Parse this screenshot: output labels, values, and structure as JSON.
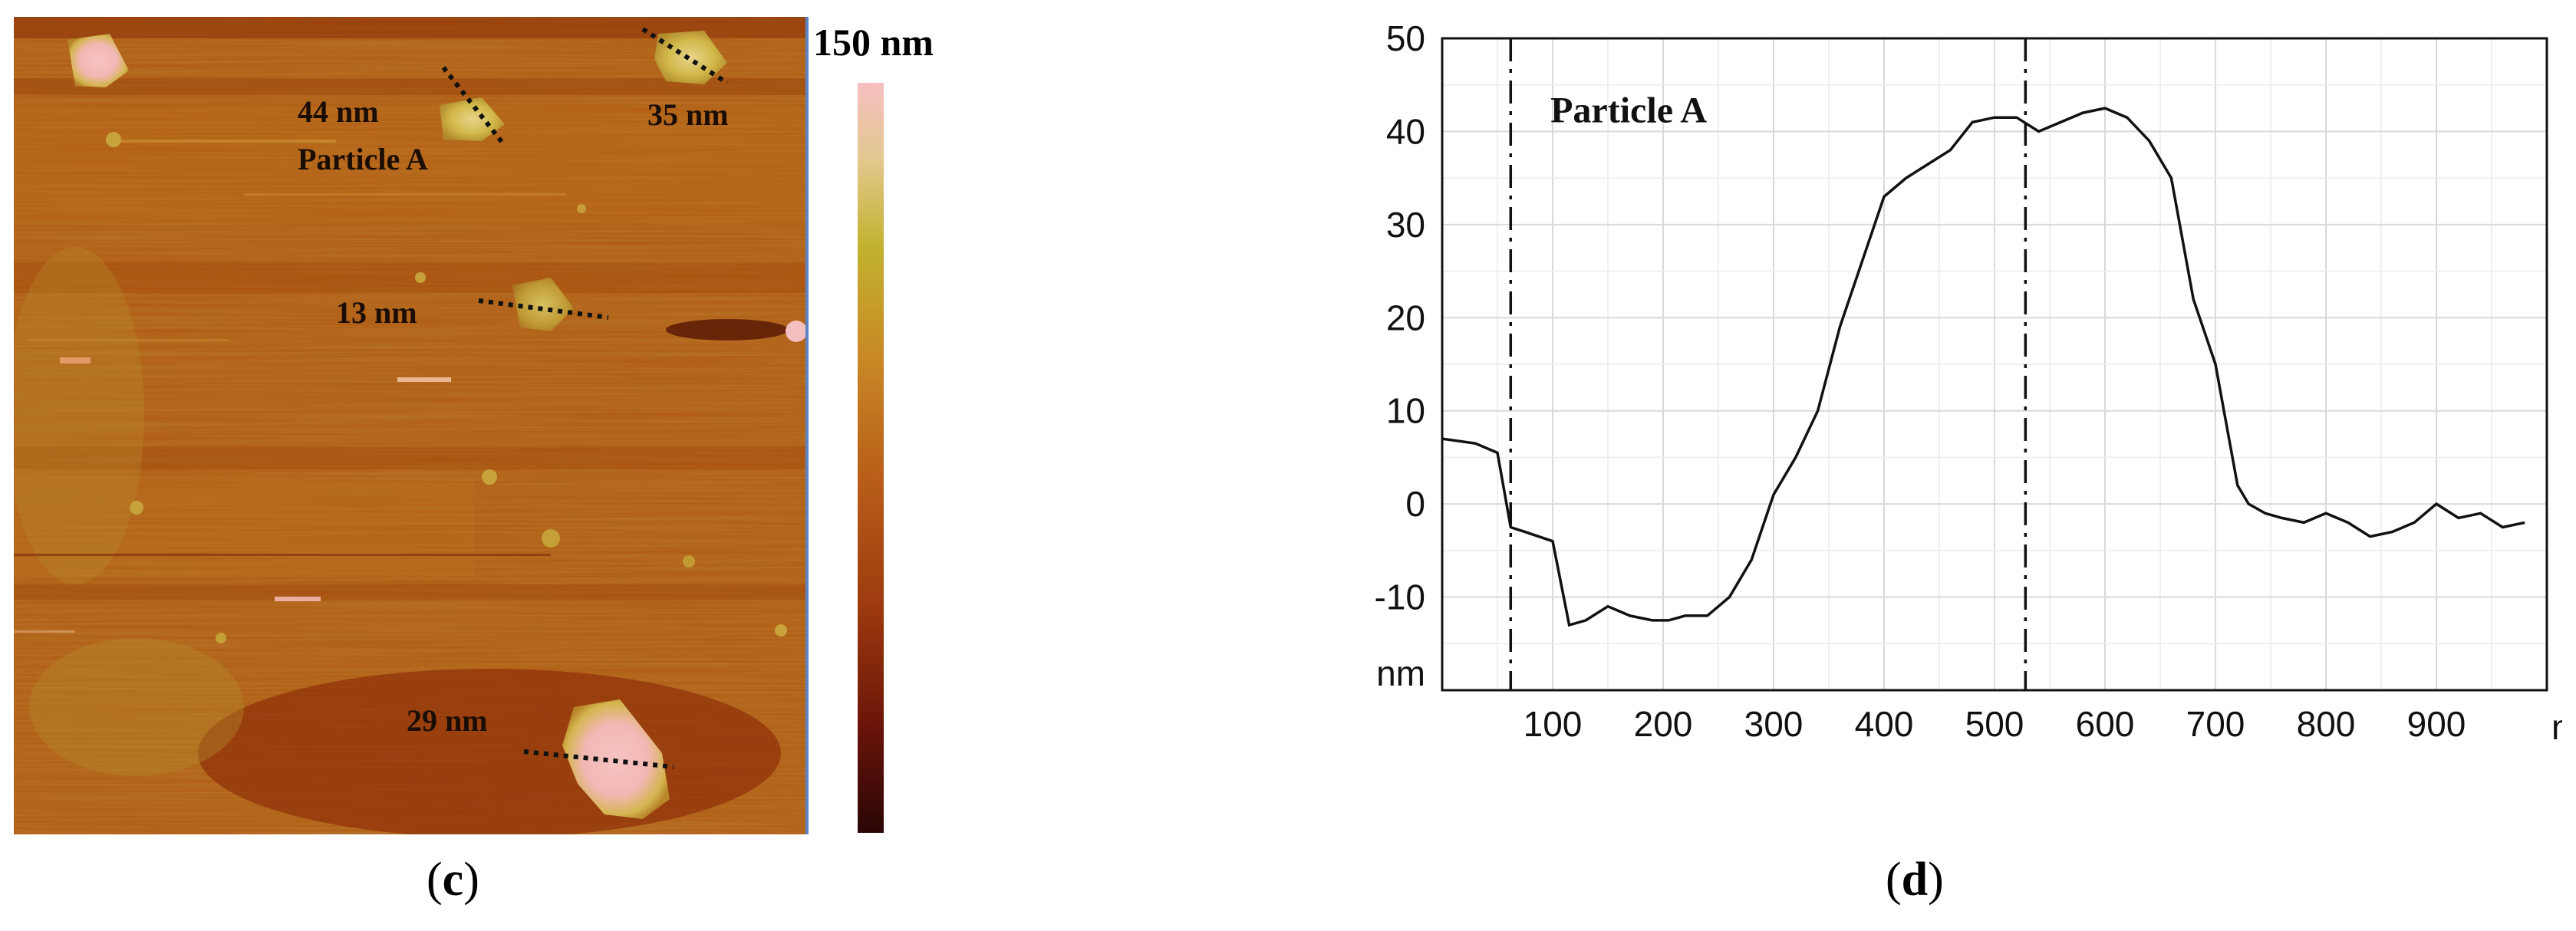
{
  "afm_image": {
    "labels": [
      "44 nm",
      "Particle A",
      "35 nm",
      "13 nm",
      "29 nm"
    ],
    "colorbar_top_label": "150 nm",
    "colors": {
      "background": "#b0560f",
      "highlight": "#f2b9b6",
      "dark_edge": "#5a1a06"
    }
  },
  "panel_labels": {
    "c": {
      "open": "(",
      "letter": "c",
      "close": ")"
    },
    "d": {
      "open": "(",
      "letter": "d",
      "close": ")"
    }
  },
  "chart_data": {
    "type": "line",
    "title": "",
    "annotation": "Particle A",
    "xlabel": "nm",
    "ylabel": "nm",
    "xlim": [
      0,
      1000
    ],
    "ylim": [
      -20,
      50
    ],
    "x_tick_labels": [
      "100",
      "200",
      "300",
      "400",
      "500",
      "600",
      "700",
      "800",
      "900"
    ],
    "y_tick_labels": [
      "50",
      "40",
      "30",
      "20",
      "10",
      "0",
      "-10"
    ],
    "grid": true,
    "markers": [
      62,
      528
    ],
    "series": [
      {
        "x": [
          0,
          30,
          50,
          62,
          75,
          100,
          115,
          130,
          150,
          170,
          190,
          205,
          220,
          240,
          260,
          280,
          300,
          320,
          340,
          360,
          380,
          400,
          420,
          440,
          460,
          480,
          500,
          520,
          540,
          560,
          580,
          600,
          620,
          640,
          660,
          680,
          700,
          720,
          730,
          745,
          760,
          780,
          800,
          820,
          840,
          860,
          880,
          900,
          920,
          940,
          960,
          980
        ],
        "y": [
          7,
          6.5,
          5.5,
          -2.5,
          -3,
          -4,
          -13,
          -12.5,
          -11,
          -12,
          -12.5,
          -12.5,
          -12,
          -12,
          -10,
          -6,
          1,
          5,
          10,
          19,
          26,
          33,
          35,
          36.5,
          38,
          41,
          41.5,
          41.5,
          40,
          41,
          42,
          42.5,
          41.5,
          39,
          35,
          22,
          15,
          2,
          0,
          -1,
          -1.5,
          -2,
          -1,
          -2,
          -3.5,
          -3,
          -2,
          0,
          -1.5,
          -1,
          -2.5,
          -2
        ]
      }
    ]
  }
}
